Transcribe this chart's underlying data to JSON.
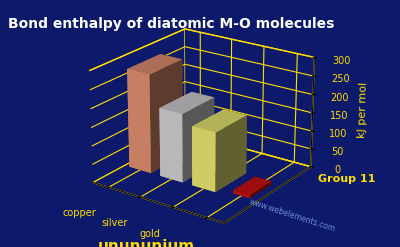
{
  "title": "Bond enthalpy of diatomic M-O molecules",
  "ylabel": "kJ per mol",
  "group_label": "Group 11",
  "background_color": "#0d1a6b",
  "title_color": "#ffffff",
  "label_color": "#ffdd00",
  "grid_color": "#ffdd00",
  "elements": [
    "copper",
    "silver",
    "gold",
    "unununium"
  ],
  "values": [
    269,
    186,
    160,
    8
  ],
  "bar_colors": [
    "#e09070",
    "#d0d0d0",
    "#e8e870",
    "#cc1111"
  ],
  "bar_colors_light": [
    "#f0b090",
    "#f0f0f0",
    "#f8f8a0",
    "#ff3333"
  ],
  "bar_colors_dark": [
    "#a06040",
    "#909090",
    "#a0a040",
    "#880000"
  ],
  "platform_color": "#8b1a1a",
  "ylim": [
    0,
    300
  ],
  "yticks": [
    0,
    50,
    100,
    150,
    200,
    250,
    300
  ],
  "title_fontsize": 10,
  "axis_fontsize": 8,
  "tick_fontsize": 7,
  "watermark": "www.webelements.com"
}
